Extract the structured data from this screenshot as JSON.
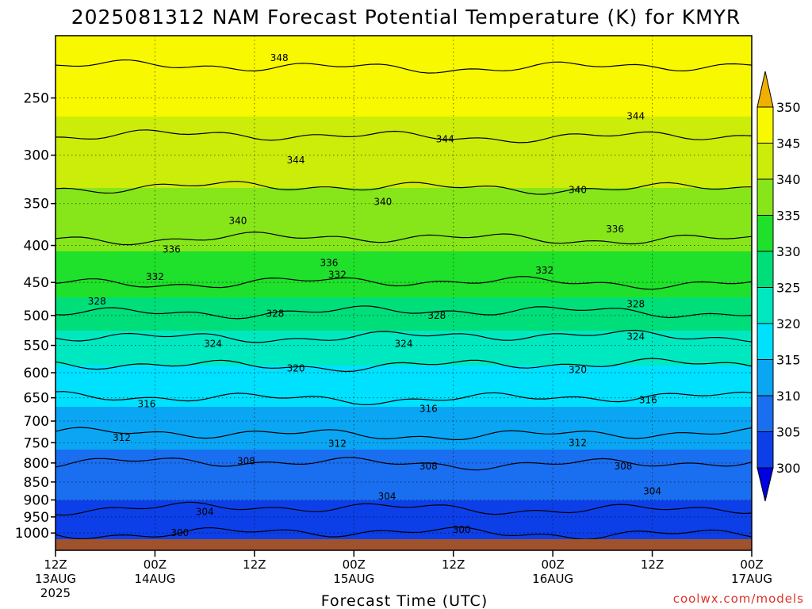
{
  "title": "2025081312 NAM Forecast Potential Temperature (K) for KMYR",
  "xlabel": "Forecast Time (UTC)",
  "credit": "coolwx.com/models",
  "chart_data": {
    "type": "heatmap",
    "title": "2025081312 NAM Forecast Potential Temperature (K) for KMYR",
    "xlabel": "Forecast Time (UTC)",
    "ylabel": "",
    "x_range_hours": [
      0,
      84
    ],
    "x_ticks": [
      {
        "hour": 0,
        "label": "12Z",
        "sub": "13AUG",
        "sub2": "2025"
      },
      {
        "hour": 12,
        "label": "00Z",
        "sub": "14AUG",
        "sub2": ""
      },
      {
        "hour": 24,
        "label": "12Z",
        "sub": "",
        "sub2": ""
      },
      {
        "hour": 36,
        "label": "00Z",
        "sub": "15AUG",
        "sub2": ""
      },
      {
        "hour": 48,
        "label": "12Z",
        "sub": "",
        "sub2": ""
      },
      {
        "hour": 60,
        "label": "00Z",
        "sub": "16AUG",
        "sub2": ""
      },
      {
        "hour": 72,
        "label": "12Z",
        "sub": "",
        "sub2": ""
      },
      {
        "hour": 84,
        "label": "00Z",
        "sub": "17AUG",
        "sub2": ""
      }
    ],
    "y_axis": {
      "type": "log-pressure",
      "range_hPa": [
        1020,
        205
      ],
      "ticks": [
        250,
        300,
        350,
        400,
        450,
        500,
        550,
        600,
        650,
        700,
        750,
        800,
        850,
        900,
        950,
        1000
      ]
    },
    "colorbar": {
      "levels": [
        300,
        305,
        310,
        315,
        320,
        325,
        330,
        335,
        340,
        345,
        350
      ],
      "colors": [
        "#0000e0",
        "#0d3fe8",
        "#1a6ef0",
        "#0aa6f4",
        "#00e0ff",
        "#00e8c0",
        "#00de7a",
        "#1fe02a",
        "#86e61a",
        "#ccec0a",
        "#f8f800",
        "#f0b000"
      ]
    },
    "profile": [
      {
        "p": 1000,
        "theta": 300
      },
      {
        "p": 950,
        "theta": 303
      },
      {
        "p": 900,
        "theta": 305
      },
      {
        "p": 850,
        "theta": 306.5
      },
      {
        "p": 800,
        "theta": 308
      },
      {
        "p": 750,
        "theta": 311
      },
      {
        "p": 700,
        "theta": 313.5
      },
      {
        "p": 650,
        "theta": 316
      },
      {
        "p": 600,
        "theta": 319
      },
      {
        "p": 550,
        "theta": 322.5
      },
      {
        "p": 500,
        "theta": 327.5
      },
      {
        "p": 450,
        "theta": 332
      },
      {
        "p": 400,
        "theta": 335.5
      },
      {
        "p": 350,
        "theta": 338.5
      },
      {
        "p": 300,
        "theta": 343
      },
      {
        "p": 250,
        "theta": 346
      },
      {
        "p": 205,
        "theta": 350
      }
    ],
    "contour_levels": [
      300,
      304,
      308,
      312,
      316,
      320,
      324,
      328,
      332,
      336,
      340,
      344,
      348
    ],
    "contour_labels": [
      {
        "value": "348",
        "hour": 27,
        "p": 220
      },
      {
        "value": "344",
        "hour": 29,
        "p": 305
      },
      {
        "value": "344",
        "hour": 47,
        "p": 285
      },
      {
        "value": "344",
        "hour": 70,
        "p": 265
      },
      {
        "value": "340",
        "hour": 22,
        "p": 370
      },
      {
        "value": "340",
        "hour": 39.5,
        "p": 348
      },
      {
        "value": "340",
        "hour": 63,
        "p": 335
      },
      {
        "value": "336",
        "hour": 14,
        "p": 405
      },
      {
        "value": "336",
        "hour": 33,
        "p": 423
      },
      {
        "value": "336",
        "hour": 67.5,
        "p": 380
      },
      {
        "value": "332",
        "hour": 12,
        "p": 442
      },
      {
        "value": "332",
        "hour": 34,
        "p": 439
      },
      {
        "value": "332",
        "hour": 59,
        "p": 433
      },
      {
        "value": "328",
        "hour": 5,
        "p": 478
      },
      {
        "value": "328",
        "hour": 26.5,
        "p": 497
      },
      {
        "value": "328",
        "hour": 46,
        "p": 500
      },
      {
        "value": "328",
        "hour": 70,
        "p": 482
      },
      {
        "value": "324",
        "hour": 19,
        "p": 547
      },
      {
        "value": "324",
        "hour": 42,
        "p": 547
      },
      {
        "value": "324",
        "hour": 70,
        "p": 535
      },
      {
        "value": "320",
        "hour": 29,
        "p": 592
      },
      {
        "value": "320",
        "hour": 63,
        "p": 595
      },
      {
        "value": "316",
        "hour": 11,
        "p": 663
      },
      {
        "value": "316",
        "hour": 45,
        "p": 673
      },
      {
        "value": "316",
        "hour": 71.5,
        "p": 655
      },
      {
        "value": "312",
        "hour": 8,
        "p": 738
      },
      {
        "value": "312",
        "hour": 34,
        "p": 752
      },
      {
        "value": "312",
        "hour": 63,
        "p": 750
      },
      {
        "value": "308",
        "hour": 23,
        "p": 795
      },
      {
        "value": "308",
        "hour": 45,
        "p": 808
      },
      {
        "value": "308",
        "hour": 68.5,
        "p": 808
      },
      {
        "value": "304",
        "hour": 40,
        "p": 890
      },
      {
        "value": "304",
        "hour": 18,
        "p": 935
      },
      {
        "value": "304",
        "hour": 72,
        "p": 875
      },
      {
        "value": "300",
        "hour": 15,
        "p": 1000
      },
      {
        "value": "300",
        "hour": 49,
        "p": 990
      }
    ]
  }
}
